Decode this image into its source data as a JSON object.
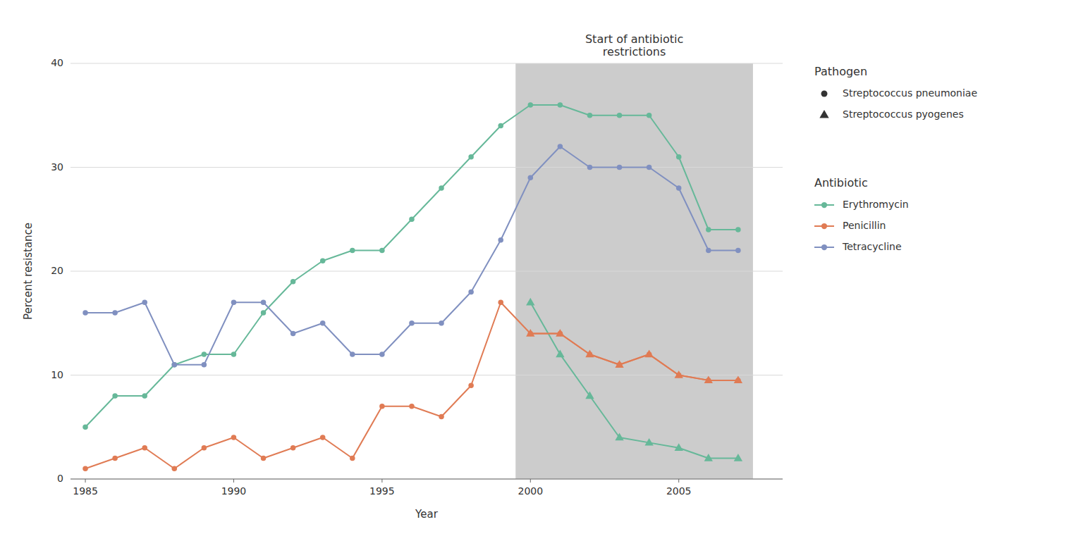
{
  "chart_data": {
    "type": "line",
    "xlabel": "Year",
    "ylabel": "Percent resistance",
    "x": [
      1985,
      1986,
      1987,
      1988,
      1989,
      1990,
      1991,
      1992,
      1993,
      1994,
      1995,
      1996,
      1997,
      1998,
      1999,
      2000,
      2001,
      2002,
      2003,
      2004,
      2005,
      2006,
      2007
    ],
    "series": [
      {
        "color": "#66b899",
        "marker": "circle",
        "values": [
          5,
          8,
          8,
          11,
          12,
          12,
          16,
          19,
          21,
          22,
          22,
          25,
          28,
          31,
          34,
          36,
          36,
          35,
          35,
          35,
          31,
          24,
          24
        ]
      },
      {
        "color": "#e07b54",
        "marker": "circle",
        "values": [
          1,
          2,
          3,
          1,
          3,
          4,
          2,
          3,
          4,
          2,
          7,
          7,
          6,
          9,
          17,
          14,
          14,
          12,
          11,
          12,
          10,
          9.5,
          9.5
        ]
      },
      {
        "color": "#8090c0",
        "marker": "circle",
        "values": [
          16,
          16,
          17,
          11,
          11,
          17,
          17,
          14,
          15,
          12,
          12,
          15,
          15,
          18,
          23,
          29,
          32,
          30,
          30,
          30,
          28,
          22,
          22
        ]
      },
      {
        "color": "#66b899",
        "marker": "triangle",
        "values": [
          null,
          null,
          null,
          null,
          null,
          null,
          null,
          null,
          null,
          null,
          null,
          null,
          null,
          null,
          null,
          17,
          12,
          8,
          4,
          3.5,
          3,
          2,
          2
        ]
      },
      {
        "color": "#e07b54",
        "marker": "triangle",
        "values": [
          null,
          null,
          null,
          null,
          null,
          null,
          null,
          null,
          null,
          null,
          null,
          null,
          null,
          null,
          null,
          14,
          14,
          12,
          11,
          12,
          10,
          9.5,
          9.5
        ]
      }
    ],
    "shaded_regions": [
      {
        "x0": 1999.5,
        "x1": 2007.5,
        "color": "#cccccc"
      }
    ],
    "annotations": [
      {
        "text": "Start of antibiotic\nrestrictions",
        "x": 2003.5,
        "y": 40.5
      }
    ],
    "legends": [
      {
        "title": "Pathogen",
        "entries": [
          {
            "name": "Streptococcus pneumoniae",
            "marker": "circle"
          },
          {
            "name": "Streptococcus pyogenes",
            "marker": "triangle"
          }
        ]
      },
      {
        "title": "Antibiotic",
        "entries": [
          {
            "name": "Erythromycin",
            "color": "#66b899"
          },
          {
            "name": "Penicillin",
            "color": "#e07b54"
          },
          {
            "name": "Tetracycline",
            "color": "#8090c0"
          }
        ]
      }
    ],
    "xlim": [
      1984.5,
      2008.5
    ],
    "ylim": [
      0,
      40
    ],
    "xticks": [
      1985,
      1990,
      1995,
      2000,
      2005
    ],
    "yticks": [
      0,
      10,
      20,
      30,
      40
    ],
    "grid": true
  }
}
